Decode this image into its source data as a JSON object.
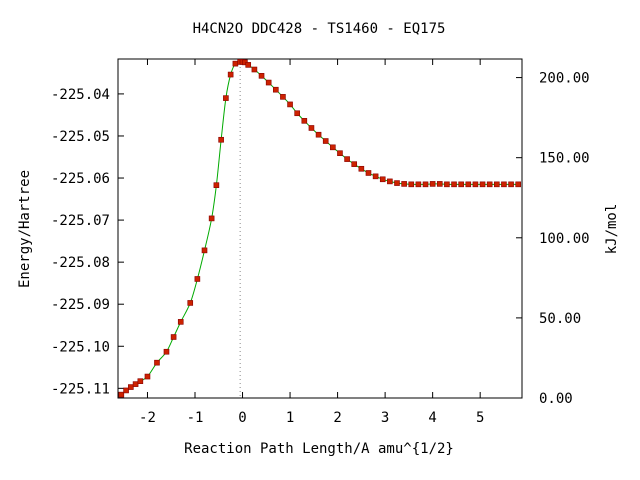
{
  "chart_data": {
    "type": "line",
    "title": "H4CN2O   DDC428 - TS1460 - EQ175",
    "xlabel": "Reaction Path Length/A amu^{1/2}",
    "ylabel": "Energy/Hartree",
    "y2label": "kJ/mol",
    "xlim": [
      -2.62,
      5.88
    ],
    "ylim": [
      -225.1123,
      -225.0317
    ],
    "y2lim": [
      0.0,
      211.6
    ],
    "x_ticks": [
      -2,
      -1,
      0,
      1,
      2,
      3,
      4,
      5
    ],
    "y_ticks": [
      -225.04,
      -225.05,
      -225.06,
      -225.07,
      -225.08,
      -225.09,
      -225.1,
      -225.11
    ],
    "y_tick_labels": [
      "-225.04",
      "-225.05",
      "-225.06",
      "-225.07",
      "-225.08",
      "-225.09",
      "-225.10",
      "-225.11"
    ],
    "y2_ticks": [
      0.0,
      50.0,
      100.0,
      150.0,
      200.0
    ],
    "y2_tick_labels": [
      "0.00",
      "50.00",
      "100.00",
      "150.00",
      "200.00"
    ],
    "ts_marker_x": -0.05,
    "grid": false,
    "colors": {
      "line": "#00aa00",
      "marker": "#cc2200",
      "marker_edge": "#880000",
      "ts_line": "#888888"
    },
    "series": [
      {
        "x": [
          -2.55,
          -2.45,
          -2.35,
          -2.25,
          -2.15,
          -2.0,
          -1.8,
          -1.6,
          -1.45,
          -1.3,
          -1.1,
          -0.95,
          -0.8,
          -0.65,
          -0.55,
          -0.45,
          -0.35,
          -0.25,
          -0.15,
          -0.05,
          0.0,
          0.05,
          0.12,
          0.25,
          0.4,
          0.55,
          0.7,
          0.85,
          1.0,
          1.15,
          1.3,
          1.45,
          1.6,
          1.75,
          1.9,
          2.05,
          2.2,
          2.35,
          2.5,
          2.65,
          2.8,
          2.95,
          3.1,
          3.25,
          3.4,
          3.55,
          3.7,
          3.85,
          4.0,
          4.15,
          4.3,
          4.45,
          4.6,
          4.75,
          4.9,
          5.05,
          5.2,
          5.35,
          5.5,
          5.65,
          5.8
        ],
        "y": [
          -225.1115,
          -225.1105,
          -225.1097,
          -225.109,
          -225.1083,
          -225.1072,
          -225.1039,
          -225.1013,
          -225.0978,
          -225.0942,
          -225.0897,
          -225.084,
          -225.0772,
          -225.0696,
          -225.0617,
          -225.0509,
          -225.041,
          -225.0354,
          -225.0328,
          -225.0324,
          -225.0324,
          -225.0325,
          -225.0331,
          -225.0342,
          -225.0357,
          -225.0373,
          -225.039,
          -225.0407,
          -225.0425,
          -225.0446,
          -225.0464,
          -225.0481,
          -225.0497,
          -225.0512,
          -225.0527,
          -225.0541,
          -225.0555,
          -225.0567,
          -225.0578,
          -225.0588,
          -225.0596,
          -225.0603,
          -225.0608,
          -225.0612,
          -225.0614,
          -225.0615,
          -225.0615,
          -225.0615,
          -225.0614,
          -225.0614,
          -225.0615,
          -225.0615,
          -225.0615,
          -225.0615,
          -225.0615,
          -225.0615,
          -225.0615,
          -225.0615,
          -225.0615,
          -225.0615,
          -225.0615
        ]
      }
    ]
  }
}
